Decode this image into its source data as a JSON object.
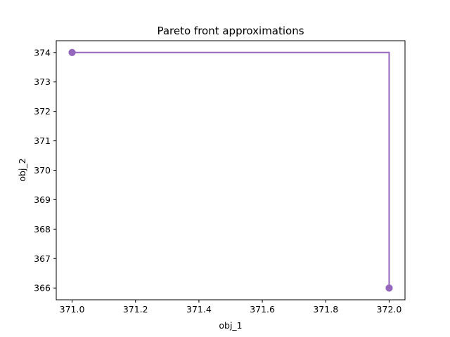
{
  "chart_data": {
    "type": "line",
    "title": "Pareto front approximations",
    "xlabel": "obj_1",
    "ylabel": "obj_2",
    "xlim": [
      370.95,
      372.05
    ],
    "ylim": [
      365.6,
      374.4
    ],
    "x_ticks": [
      371.0,
      371.2,
      371.4,
      371.6,
      371.8,
      372.0
    ],
    "x_tick_labels": [
      "371.0",
      "371.2",
      "371.4",
      "371.6",
      "371.8",
      "372.0"
    ],
    "y_ticks": [
      366,
      367,
      368,
      369,
      370,
      371,
      372,
      373,
      374
    ],
    "y_tick_labels": [
      "366",
      "367",
      "368",
      "369",
      "370",
      "371",
      "372",
      "373",
      "374"
    ],
    "grid": false,
    "step": "post",
    "series": [
      {
        "color": "#9467bd",
        "points": [
          {
            "x": 371.0,
            "y": 374
          },
          {
            "x": 371.0,
            "y": 374
          },
          {
            "x": 371.0,
            "y": 374
          },
          {
            "x": 372.0,
            "y": 366
          },
          {
            "x": 372.0,
            "y": 366
          },
          {
            "x": 372.0,
            "y": 366
          }
        ]
      }
    ]
  }
}
